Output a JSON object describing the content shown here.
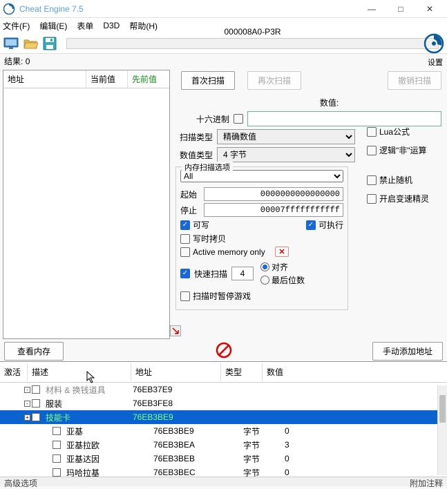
{
  "window": {
    "title": "Cheat Engine 7.5"
  },
  "menu": {
    "file": "文件(F)",
    "edit": "编辑(E)",
    "table": "表单",
    "d3d": "D3D",
    "help": "帮助(H)"
  },
  "process": {
    "name": "000008A0-P3R"
  },
  "settings_label": "设置",
  "results": {
    "label": "结果:",
    "count": "0"
  },
  "left_cols": {
    "addr": "地址",
    "current": "当前值",
    "previous": "先前值"
  },
  "scan_btns": {
    "first": "首次扫描",
    "next": "再次扫描",
    "undo": "撤销扫描"
  },
  "value": {
    "label": "数值:",
    "hex_label": "十六进制",
    "input": ""
  },
  "scan_type": {
    "label": "扫描类型",
    "value": "精确数值"
  },
  "value_type": {
    "label": "数值类型",
    "value": "4 字节"
  },
  "side_opts": {
    "lua": "Lua公式",
    "logic": "逻辑\"非\"运算",
    "no_random": "禁止随机",
    "speedhack": "开启变速精灵"
  },
  "mem_group": {
    "legend": "内存扫描选项",
    "all": "All",
    "start_lbl": "起始",
    "start": "0000000000000000",
    "stop_lbl": "停止",
    "stop": "00007fffffffffff",
    "writable": "可写",
    "executable": "可执行",
    "cow": "写时拷贝",
    "active_only": "Active memory only",
    "fast": "快速扫描",
    "fast_val": "4",
    "align": "对齐",
    "lastdigits": "最后位数",
    "pause": "扫描时暂停游戏"
  },
  "view_mem": "查看内存",
  "add_manual": "手动添加地址",
  "bt_cols": {
    "active": "激活",
    "desc": "描述",
    "addr": "地址",
    "type": "类型",
    "value": "数值"
  },
  "rows": [
    {
      "tree": "-",
      "desc": "材料 & 换钱道具",
      "descClass": "grey",
      "addr": "76EB37E9",
      "type": "",
      "val": "",
      "indent": 1
    },
    {
      "tree": "-",
      "desc": "服装",
      "addr": "76EB3FE8",
      "type": "",
      "val": "",
      "indent": 1
    },
    {
      "tree": "+",
      "desc": "技能卡",
      "addr": "76EB3BE9",
      "type": "",
      "val": "",
      "sel": true,
      "indent": 1
    },
    {
      "tree": "",
      "desc": "亚基",
      "addr": "76EB3BE9",
      "type": "字节",
      "val": "0",
      "indent": 2
    },
    {
      "tree": "",
      "desc": "亚基拉欧",
      "addr": "76EB3BEA",
      "type": "字节",
      "val": "3",
      "indent": 2
    },
    {
      "tree": "",
      "desc": "亚基达因",
      "addr": "76EB3BEB",
      "type": "字节",
      "val": "0",
      "indent": 2
    },
    {
      "tree": "",
      "desc": "玛哈拉基",
      "addr": "76EB3BEC",
      "type": "字节",
      "val": "0",
      "indent": 2
    }
  ],
  "status": {
    "left": "高级选项",
    "right": "附加注释"
  }
}
